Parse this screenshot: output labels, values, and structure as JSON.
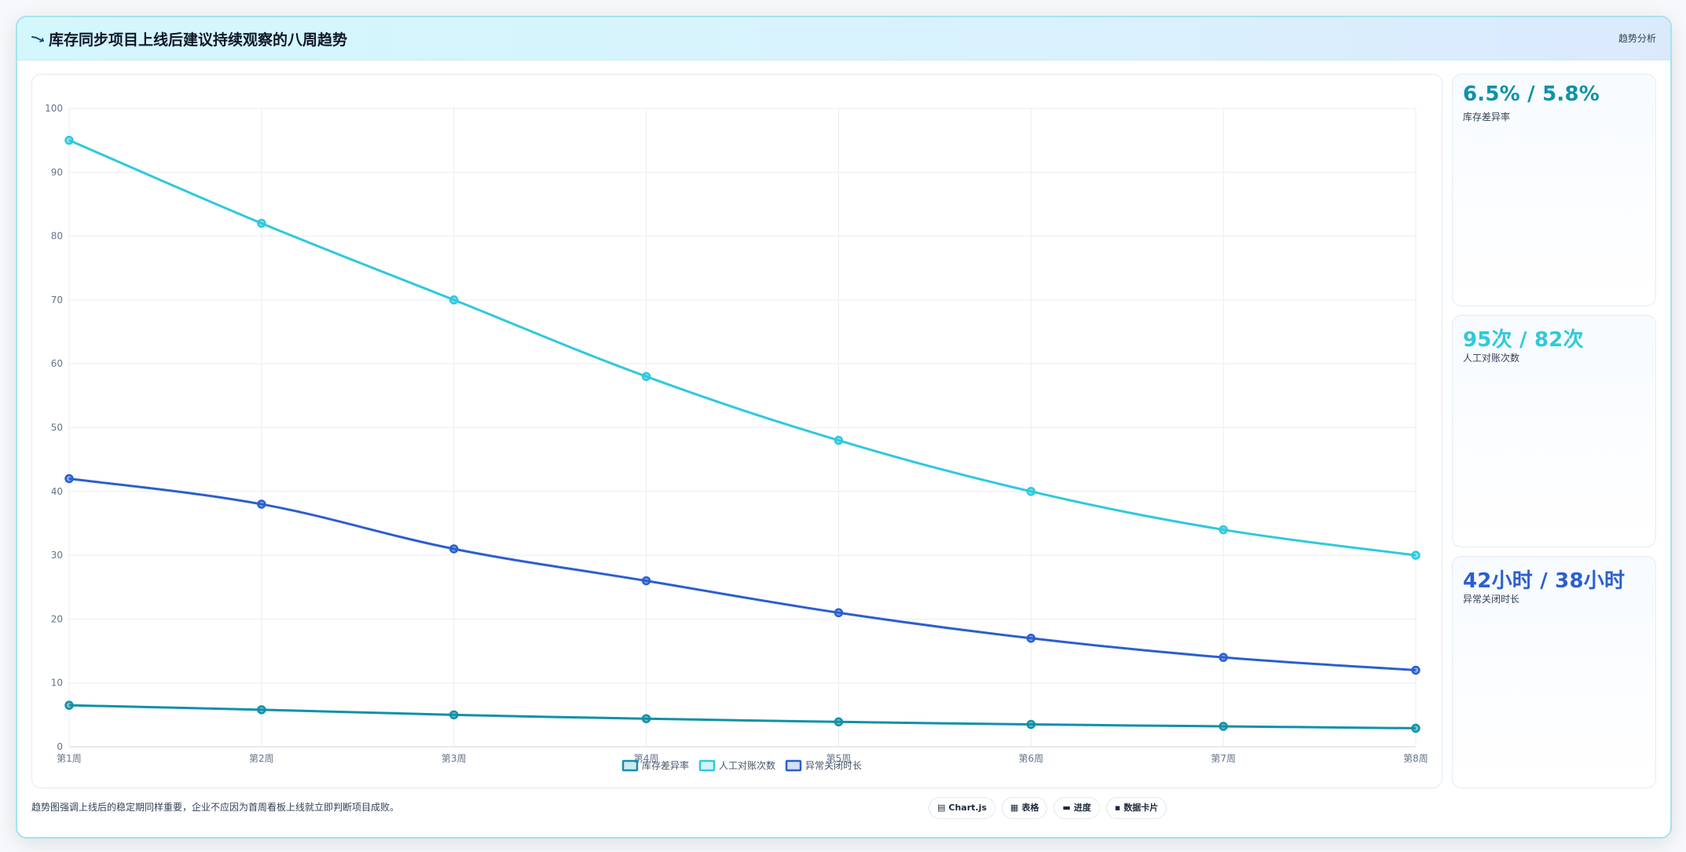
{
  "header": {
    "title": "库存同步项目上线后建议持续观察的八周趋势",
    "tag": "趋势分析",
    "icon": "trend-icon"
  },
  "chart_data": {
    "type": "line",
    "x": [
      "第1周",
      "第2周",
      "第3周",
      "第4周",
      "第5周",
      "第6周",
      "第7周",
      "第8周"
    ],
    "ylim": [
      0,
      100
    ],
    "yticks": [
      0,
      10,
      20,
      30,
      40,
      50,
      60,
      70,
      80,
      90,
      100
    ],
    "grid": true,
    "legend_position": "bottom",
    "series": [
      {
        "name": "库存差异率",
        "color": "#0e91a8",
        "values": [
          6.5,
          5.8,
          5.0,
          4.4,
          3.9,
          3.5,
          3.2,
          2.9
        ]
      },
      {
        "name": "人工对账次数",
        "color": "#2ec9dd",
        "values": [
          95,
          82,
          70,
          58,
          48,
          40,
          34,
          30
        ]
      },
      {
        "name": "异常关闭时长",
        "color": "#2b5fd0",
        "values": [
          42,
          38,
          31,
          26,
          21,
          17,
          14,
          12
        ]
      }
    ]
  },
  "kpis": [
    {
      "value": "6.5% / 5.8%",
      "label": "库存差异率",
      "color": "#0e91a8"
    },
    {
      "value": "95次 / 82次",
      "label": "人工对账次数",
      "color": "#2ec9dd"
    },
    {
      "value": "42小时 / 38小时",
      "label": "异常关闭时长",
      "color": "#2b5fd0"
    }
  ],
  "footnote": "趋势图强调上线后的稳定期同样重要，企业不应因为首周看板上线就立即判断项目成败。",
  "pills": [
    {
      "glyph": "▤",
      "label": "Chart.js",
      "icon": "chart-icon"
    },
    {
      "glyph": "▦",
      "label": "表格",
      "icon": "table-icon"
    },
    {
      "glyph": "▬",
      "label": "进度",
      "icon": "progress-icon"
    },
    {
      "glyph": "▪",
      "label": "数据卡片",
      "icon": "card-icon"
    }
  ]
}
